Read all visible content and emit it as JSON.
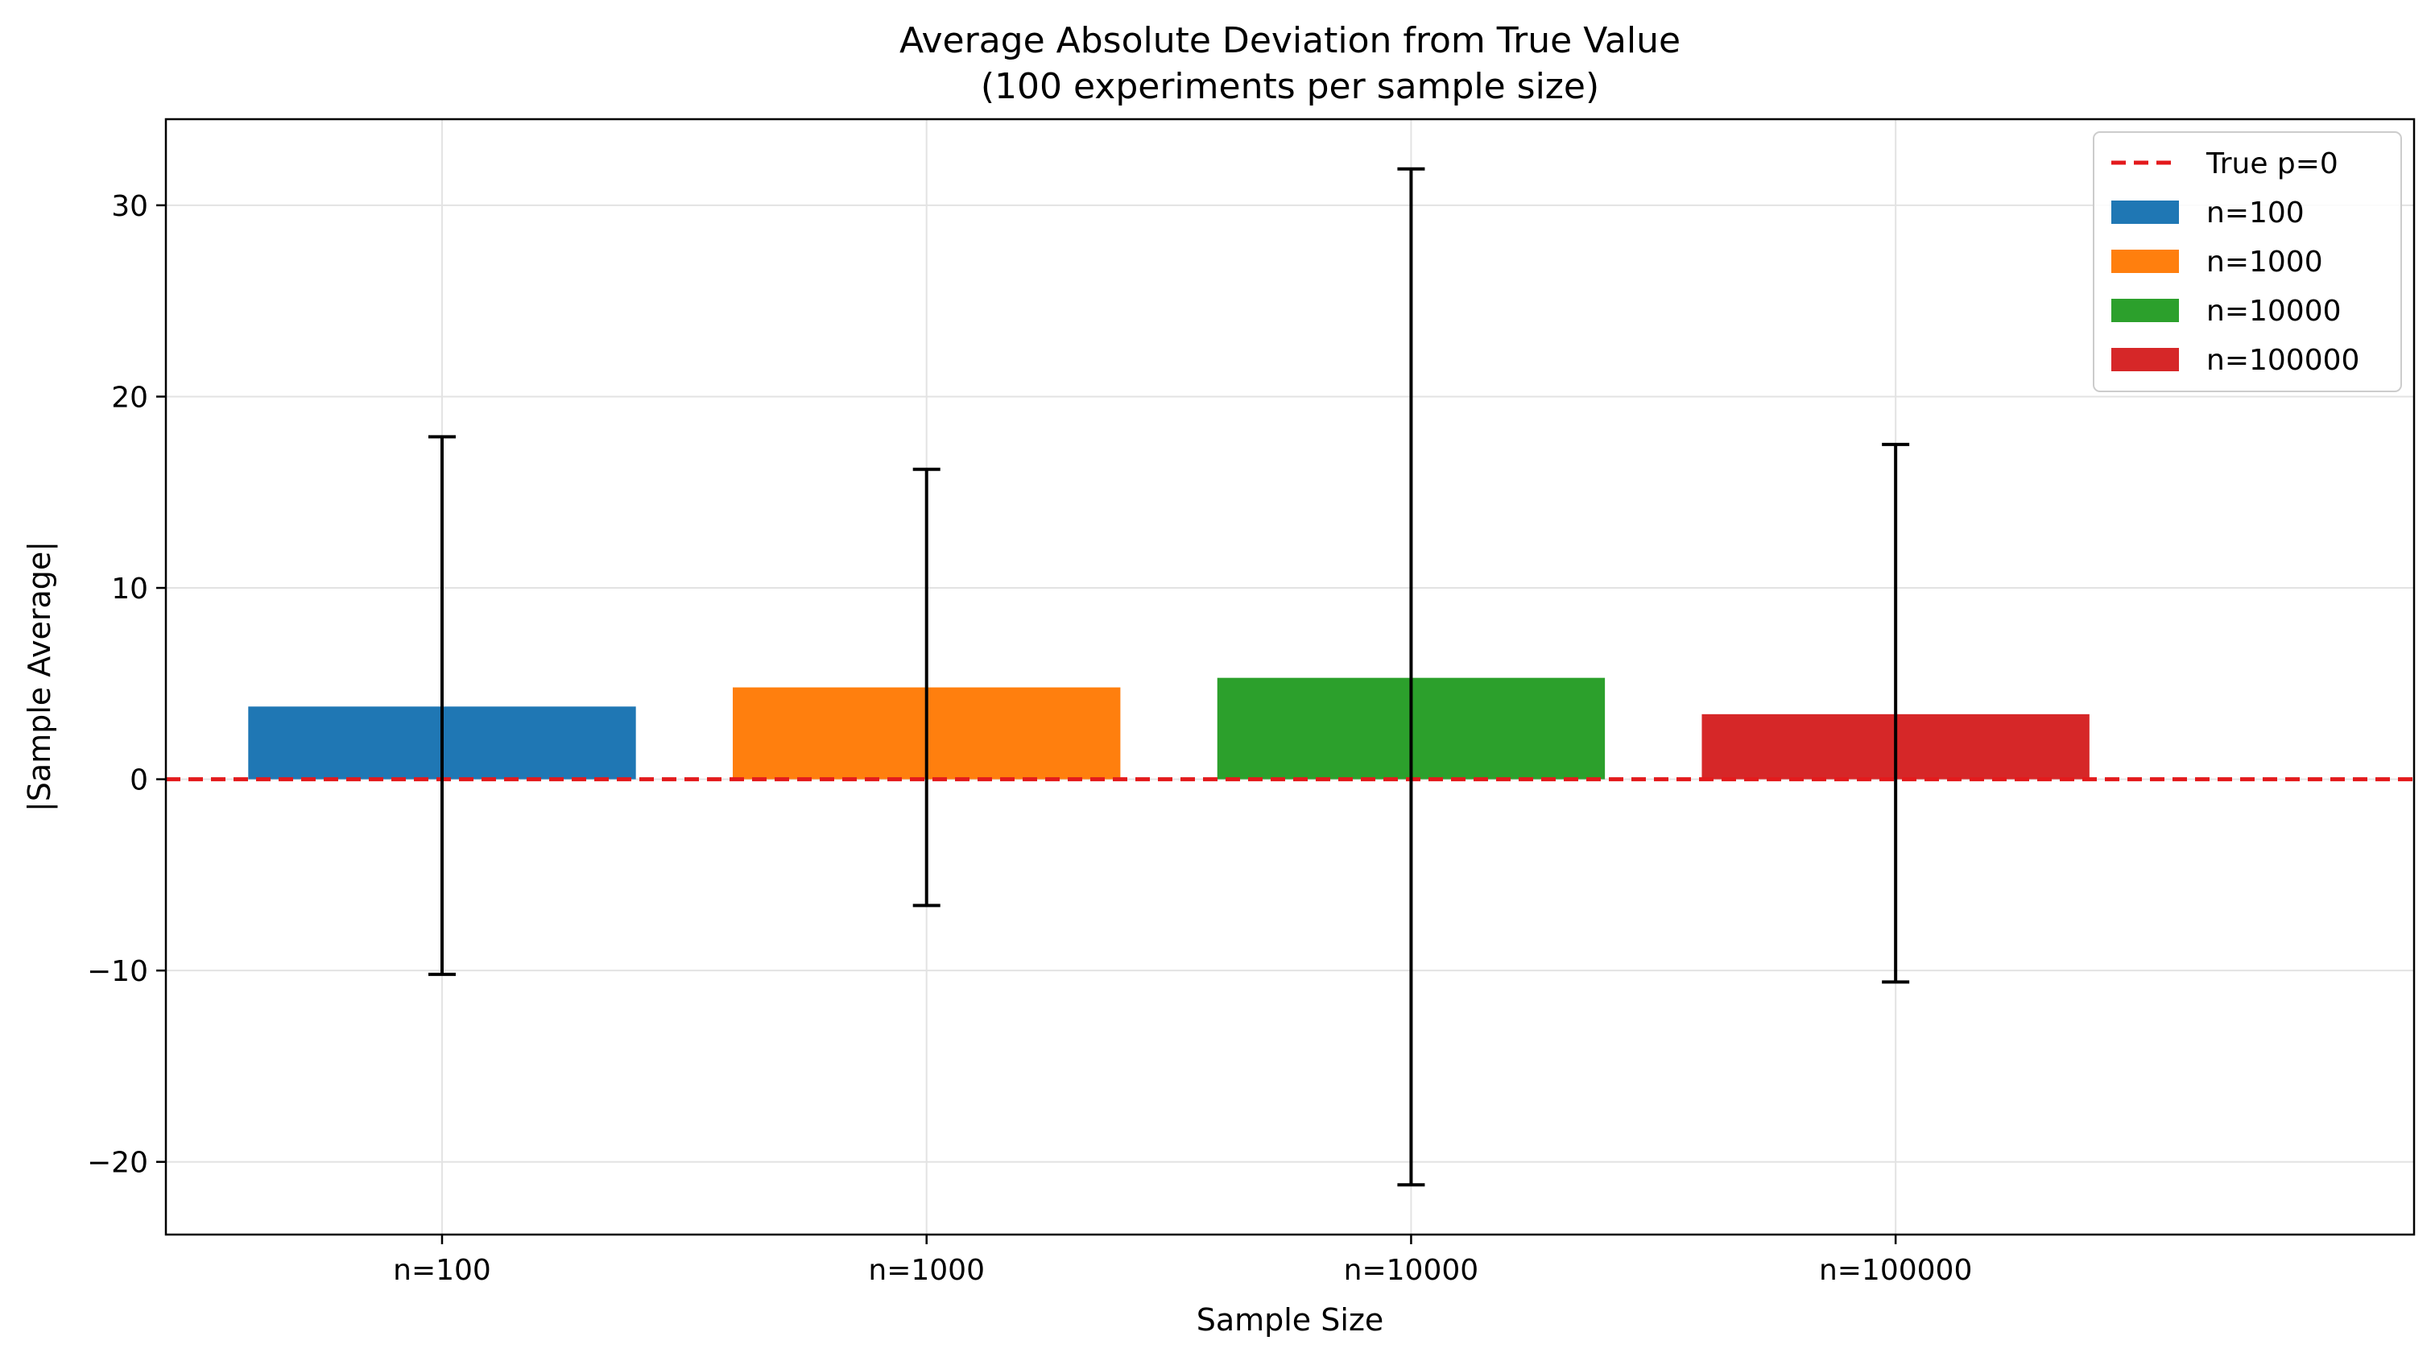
{
  "chart_data": {
    "type": "bar",
    "title": "Average Absolute Deviation from True Value",
    "subtitle": "(100 experiments per sample size)",
    "xlabel": "Sample Size",
    "ylabel": "|Sample Average|",
    "categories": [
      "n=100",
      "n=1000",
      "n=10000",
      "n=100000"
    ],
    "values": [
      3.8,
      4.8,
      5.3,
      3.4
    ],
    "error_bars": [
      {
        "low": -10.2,
        "high": 17.9
      },
      {
        "low": -6.6,
        "high": 16.2
      },
      {
        "low": -21.2,
        "high": 31.9
      },
      {
        "low": -10.6,
        "high": 17.5
      }
    ],
    "bar_colors": [
      "#1f77b4",
      "#ff7f0e",
      "#2ca02c",
      "#d62728"
    ],
    "reference_line": {
      "label": "True p=0",
      "y": 0,
      "color": "#e31a1c",
      "style": "dashed"
    },
    "ylim": [
      -23.8,
      34.5
    ],
    "yticks": [
      -20,
      -10,
      0,
      10,
      20,
      30
    ],
    "ytick_labels": [
      "−20",
      "−10",
      "0",
      "10",
      "20",
      "30"
    ],
    "grid": true,
    "legend": {
      "position": "top-right",
      "entries": [
        "True p=0",
        "n=100",
        "n=1000",
        "n=10000",
        "n=100000"
      ]
    }
  }
}
